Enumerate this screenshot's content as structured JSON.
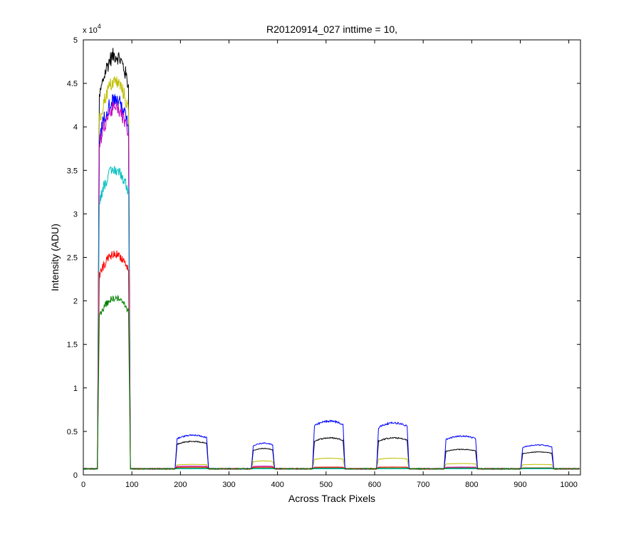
{
  "chart_data": {
    "type": "line",
    "title": "R20120914_027 inttime = 10,",
    "xlabel": "Across Track Pixels",
    "ylabel": "Intensity (ADU)",
    "y_exponent_label": "x 10",
    "y_exponent_power": "4",
    "xlim": [
      0,
      1024
    ],
    "ylim": [
      0,
      5
    ],
    "y_scale_factor": 10000,
    "xticks": [
      0,
      100,
      200,
      300,
      400,
      500,
      600,
      700,
      800,
      900,
      1000
    ],
    "xtick_labels": [
      "0",
      "100",
      "200",
      "300",
      "400",
      "500",
      "600",
      "700",
      "800",
      "900",
      "1000"
    ],
    "yticks": [
      0,
      0.5,
      1,
      1.5,
      2,
      2.5,
      3,
      3.5,
      4,
      4.5,
      5
    ],
    "ytick_labels": [
      "0",
      "0.5",
      "1",
      "1.5",
      "2",
      "2.5",
      "3",
      "3.5",
      "4",
      "4.5",
      "5"
    ],
    "grid": false,
    "legend": "none",
    "baseline": 0.07,
    "bands": [
      {
        "x0": 33,
        "x1": 93
      },
      {
        "x0": 193,
        "x1": 254
      },
      {
        "x0": 350,
        "x1": 390
      },
      {
        "x0": 476,
        "x1": 535
      },
      {
        "x0": 608,
        "x1": 667
      },
      {
        "x0": 747,
        "x1": 808
      },
      {
        "x0": 905,
        "x1": 965
      }
    ],
    "series": [
      {
        "color": "#000000",
        "plateau": [
          4.75,
          0.38,
          0.3,
          0.42,
          0.42,
          0.29,
          0.26
        ]
      },
      {
        "color": "#bfbf00",
        "plateau": [
          4.45,
          0.12,
          0.16,
          0.19,
          0.19,
          0.13,
          0.12
        ]
      },
      {
        "color": "#0000ff",
        "plateau": [
          4.25,
          0.45,
          0.36,
          0.61,
          0.59,
          0.44,
          0.34
        ]
      },
      {
        "color": "#bf00bf",
        "plateau": [
          4.15,
          0.1,
          0.1,
          0.08,
          0.09,
          0.09,
          0.08
        ]
      },
      {
        "color": "#00bfbf",
        "plateau": [
          3.45,
          0.07,
          0.07,
          0.07,
          0.07,
          0.07,
          0.07
        ]
      },
      {
        "color": "#ff0000",
        "plateau": [
          2.5,
          0.09,
          0.09,
          0.09,
          0.09,
          0.08,
          0.08
        ]
      },
      {
        "color": "#008000",
        "plateau": [
          2.0,
          0.08,
          0.08,
          0.08,
          0.08,
          0.08,
          0.08
        ]
      }
    ]
  }
}
